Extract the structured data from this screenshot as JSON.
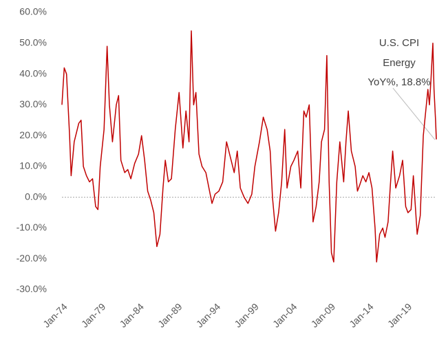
{
  "chart_data": {
    "type": "line",
    "x": [
      1974.0,
      1974.3,
      1974.6,
      1975.0,
      1975.2,
      1975.6,
      1976.2,
      1976.5,
      1976.8,
      1977.2,
      1977.6,
      1978.0,
      1978.4,
      1978.7,
      1979.0,
      1979.5,
      1979.9,
      1980.2,
      1980.6,
      1981.1,
      1981.4,
      1981.7,
      1982.2,
      1982.6,
      1983.0,
      1983.5,
      1984.0,
      1984.4,
      1984.8,
      1985.2,
      1985.6,
      1986.0,
      1986.4,
      1986.8,
      1987.2,
      1987.5,
      1987.9,
      1988.3,
      1988.8,
      1989.3,
      1989.8,
      1990.2,
      1990.6,
      1990.9,
      1991.2,
      1991.5,
      1991.9,
      1992.3,
      1992.8,
      1993.2,
      1993.6,
      1994.0,
      1994.5,
      1995.0,
      1995.5,
      1996.0,
      1996.5,
      1996.9,
      1997.3,
      1997.8,
      1998.3,
      1998.8,
      1999.2,
      1999.8,
      2000.3,
      2000.8,
      2001.2,
      2001.5,
      2001.9,
      2002.3,
      2002.7,
      2003.1,
      2003.4,
      2003.9,
      2004.3,
      2004.8,
      2005.2,
      2005.6,
      2005.9,
      2006.3,
      2006.8,
      2007.2,
      2007.6,
      2007.9,
      2008.3,
      2008.6,
      2008.9,
      2009.2,
      2009.5,
      2009.9,
      2010.3,
      2010.8,
      2011.1,
      2011.4,
      2011.8,
      2012.3,
      2012.6,
      2012.9,
      2013.3,
      2013.7,
      2014.1,
      2014.5,
      2014.9,
      2015.1,
      2015.5,
      2015.9,
      2016.2,
      2016.6,
      2016.9,
      2017.2,
      2017.6,
      2018.1,
      2018.5,
      2018.9,
      2019.2,
      2019.6,
      2019.9,
      2020.4,
      2020.8,
      2021.2,
      2021.4,
      2021.8,
      2022.0,
      2022.2,
      2022.45,
      2022.6,
      2022.8,
      2022.9
    ],
    "series": [
      {
        "color": "#c00000",
        "values": [
          30,
          42,
          40,
          20,
          7,
          18,
          24,
          25,
          10,
          7,
          5,
          6,
          -3,
          -4,
          10,
          22,
          49,
          30,
          18,
          30,
          33,
          12,
          8,
          9,
          6,
          11,
          14,
          20,
          12,
          2,
          -1,
          -5,
          -16,
          -12,
          3,
          12,
          5,
          6,
          22,
          34,
          16,
          28,
          18,
          54,
          30,
          34,
          14,
          10,
          8,
          3,
          -2,
          1,
          2,
          5,
          18,
          13,
          8,
          15,
          3,
          0,
          -2,
          1,
          10,
          18,
          26,
          22,
          15,
          0,
          -11,
          -5,
          5,
          22,
          3,
          10,
          12,
          15,
          3,
          28,
          26,
          30,
          -8,
          -3,
          5,
          18,
          22,
          46,
          5,
          -18,
          -21,
          5,
          18,
          5,
          18,
          28,
          15,
          10,
          2,
          4,
          7,
          5,
          8,
          3,
          -10,
          -21,
          -12,
          -10,
          -13,
          -8,
          4,
          15,
          3,
          7,
          12,
          -3,
          -5,
          -4,
          7,
          -12,
          -6,
          20,
          25,
          35,
          30,
          38,
          50,
          35,
          25,
          18.8
        ]
      }
    ],
    "xlim": [
      1974,
      2022.9
    ],
    "xticks": [
      {
        "value": 1974,
        "label": "Jan-74"
      },
      {
        "value": 1979,
        "label": "Jan-79"
      },
      {
        "value": 1984,
        "label": "Jan-84"
      },
      {
        "value": 1989,
        "label": "Jan-89"
      },
      {
        "value": 1994,
        "label": "Jan-94"
      },
      {
        "value": 1999,
        "label": "Jan-99"
      },
      {
        "value": 2004,
        "label": "Jan-04"
      },
      {
        "value": 2009,
        "label": "Jan-09"
      },
      {
        "value": 2014,
        "label": "Jan-14"
      },
      {
        "value": 2019,
        "label": "Jan-19"
      }
    ],
    "ylim": [
      -30,
      60
    ],
    "yticks": [
      {
        "value": 60,
        "label": "60.0%"
      },
      {
        "value": 50,
        "label": "50.0%"
      },
      {
        "value": 40,
        "label": "40.0%"
      },
      {
        "value": 30,
        "label": "30.0%"
      },
      {
        "value": 20,
        "label": "20.0%"
      },
      {
        "value": 10,
        "label": "10.0%"
      },
      {
        "value": 0,
        "label": "0.0%"
      },
      {
        "value": -10,
        "label": "-10.0%"
      },
      {
        "value": -20,
        "label": "-20.0%"
      },
      {
        "value": -30,
        "label": "-30.0%"
      }
    ],
    "annotation": [
      "U.S. CPI",
      "Energy",
      "YoY%, 18.8%"
    ],
    "grid": false
  }
}
